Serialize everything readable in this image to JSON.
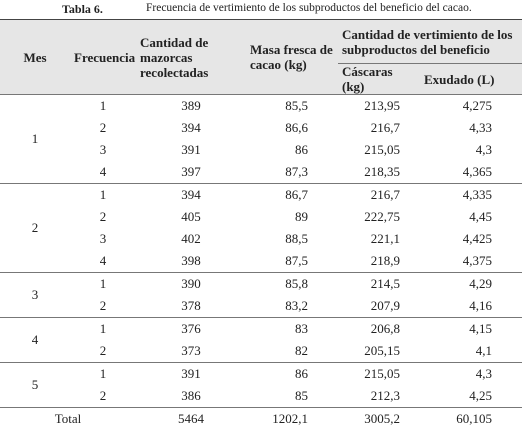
{
  "caption": {
    "label": "Tabla 6.",
    "text": "Frecuencia de vertimiento de los subproductos del beneficio del cacao."
  },
  "table": {
    "header": {
      "mes": "Mes",
      "frecuencia": "Frecuencia",
      "cantidad": "Cantidad de mazorcas recolectadas",
      "masa": "Masa fresca de cacao (kg)",
      "vertimiento": "Cantidad de vertimiento de los subproductos del beneficio",
      "cascaras": "Cáscaras (kg)",
      "exudado": "Exudado (L)"
    },
    "groups": [
      {
        "mes": "1",
        "rows": [
          [
            "1",
            "389",
            "85,5",
            "213,95",
            "4,275"
          ],
          [
            "2",
            "394",
            "86,6",
            "216,7",
            "4,33"
          ],
          [
            "3",
            "391",
            "86",
            "215,05",
            "4,3"
          ],
          [
            "4",
            "397",
            "87,3",
            "218,35",
            "4,365"
          ]
        ]
      },
      {
        "mes": "2",
        "rows": [
          [
            "1",
            "394",
            "86,7",
            "216,7",
            "4,335"
          ],
          [
            "2",
            "405",
            "89",
            "222,75",
            "4,45"
          ],
          [
            "3",
            "402",
            "88,5",
            "221,1",
            "4,425"
          ],
          [
            "4",
            "398",
            "87,5",
            "218,9",
            "4,375"
          ]
        ]
      },
      {
        "mes": "3",
        "rows": [
          [
            "1",
            "390",
            "85,8",
            "214,5",
            "4,29"
          ],
          [
            "2",
            "378",
            "83,2",
            "207,9",
            "4,16"
          ]
        ]
      },
      {
        "mes": "4",
        "rows": [
          [
            "1",
            "376",
            "83",
            "206,8",
            "4,15"
          ],
          [
            "2",
            "373",
            "82",
            "205,15",
            "4,1"
          ]
        ]
      },
      {
        "mes": "5",
        "rows": [
          [
            "1",
            "391",
            "86",
            "215,05",
            "4,3"
          ],
          [
            "2",
            "386",
            "85",
            "212,3",
            "4,25"
          ]
        ]
      }
    ],
    "total": [
      "Total",
      "5464",
      "1202,1",
      "3005,2",
      "60,105"
    ]
  }
}
